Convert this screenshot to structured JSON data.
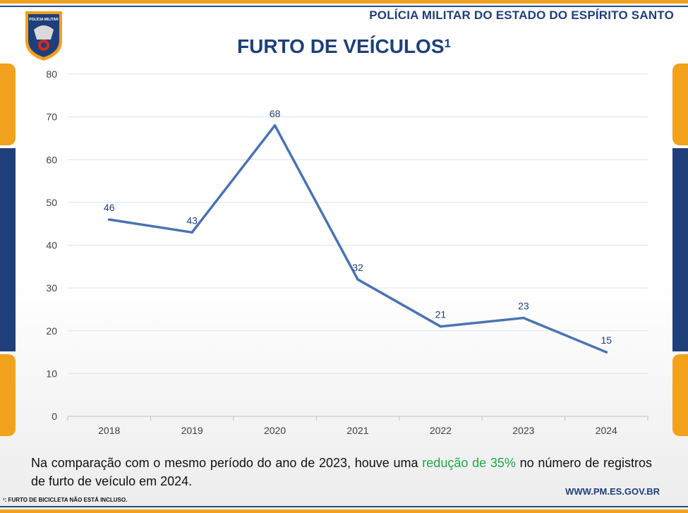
{
  "header": {
    "org_name": "POLÍCIA MILITAR DO ESTADO DO ESPÍRITO SANTO",
    "logo_text": "POLÍCIA MILITAR"
  },
  "colors": {
    "accent_orange": "#f2a11d",
    "navy": "#1f3f7a",
    "line": "#4a74b0",
    "highlight_green": "#1fa64a"
  },
  "chart_data": {
    "type": "line",
    "title": "FURTO DE VEÍCULOS",
    "title_superscript": "1",
    "categories": [
      "2018",
      "2019",
      "2020",
      "2021",
      "2022",
      "2023",
      "2024"
    ],
    "values": [
      46,
      43,
      68,
      32,
      21,
      23,
      15
    ],
    "ylim": [
      0,
      80
    ],
    "yticks": [
      0,
      10,
      20,
      30,
      40,
      50,
      60,
      70,
      80
    ],
    "grid": true,
    "data_labels": true
  },
  "comment": {
    "before": "Na comparação com o mesmo período do ano de 2023, houve uma ",
    "highlight": "redução de 35%",
    "after": " no número de registros de furto de veículo em 2024."
  },
  "footer": {
    "url": "WWW.PM.ES.GOV.BR",
    "footnote": "¹: FURTO DE BICICLETA NÃO ESTÁ INCLUSO."
  }
}
